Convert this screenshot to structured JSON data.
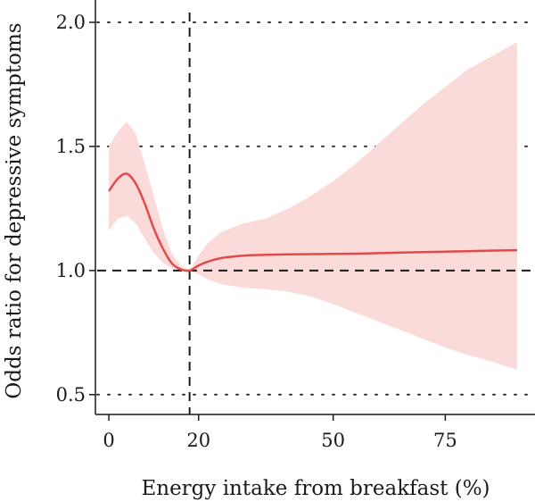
{
  "chart_data": {
    "type": "line",
    "title": "",
    "xlabel": "Energy intake from breakfast (%)",
    "ylabel": "Odds ratio for depressive symptoms",
    "xlim": [
      -3,
      95
    ],
    "ylim": [
      0.42,
      2.09
    ],
    "x_ticks": [
      0,
      20,
      50,
      75
    ],
    "y_ticks": [
      0.5,
      1.0,
      1.5,
      2.0
    ],
    "y_tick_labels": [
      "0.5",
      "1.0",
      "1.5",
      "2.0"
    ],
    "grid": "horizontal dotted",
    "reference_lines": {
      "y": 1.0,
      "x": 18
    },
    "series": [
      {
        "x": [
          0,
          2,
          4,
          6,
          8,
          10,
          12,
          14,
          16,
          18,
          20,
          22,
          25,
          30,
          35,
          40,
          45,
          50,
          55,
          60,
          65,
          70,
          75,
          80,
          85,
          91
        ],
        "y": [
          1.32,
          1.37,
          1.39,
          1.35,
          1.27,
          1.17,
          1.09,
          1.03,
          1.005,
          1.0,
          1.02,
          1.035,
          1.05,
          1.06,
          1.063,
          1.065,
          1.066,
          1.067,
          1.068,
          1.07,
          1.072,
          1.074,
          1.076,
          1.078,
          1.08,
          1.082
        ],
        "lower": [
          1.16,
          1.21,
          1.22,
          1.19,
          1.13,
          1.07,
          1.03,
          1.01,
          1.0,
          1.0,
          0.985,
          0.965,
          0.945,
          0.93,
          0.925,
          0.915,
          0.895,
          0.865,
          0.83,
          0.795,
          0.76,
          0.725,
          0.69,
          0.66,
          0.635,
          0.6
        ],
        "upper": [
          1.5,
          1.56,
          1.6,
          1.55,
          1.43,
          1.3,
          1.17,
          1.07,
          1.02,
          1.0,
          1.06,
          1.11,
          1.155,
          1.19,
          1.21,
          1.25,
          1.3,
          1.36,
          1.43,
          1.51,
          1.59,
          1.67,
          1.74,
          1.81,
          1.86,
          1.92
        ]
      }
    ],
    "colors": {
      "line": "#e24a4a",
      "band": "#fbdada",
      "reference": "#1a1a1a",
      "grid": "#333333"
    }
  }
}
